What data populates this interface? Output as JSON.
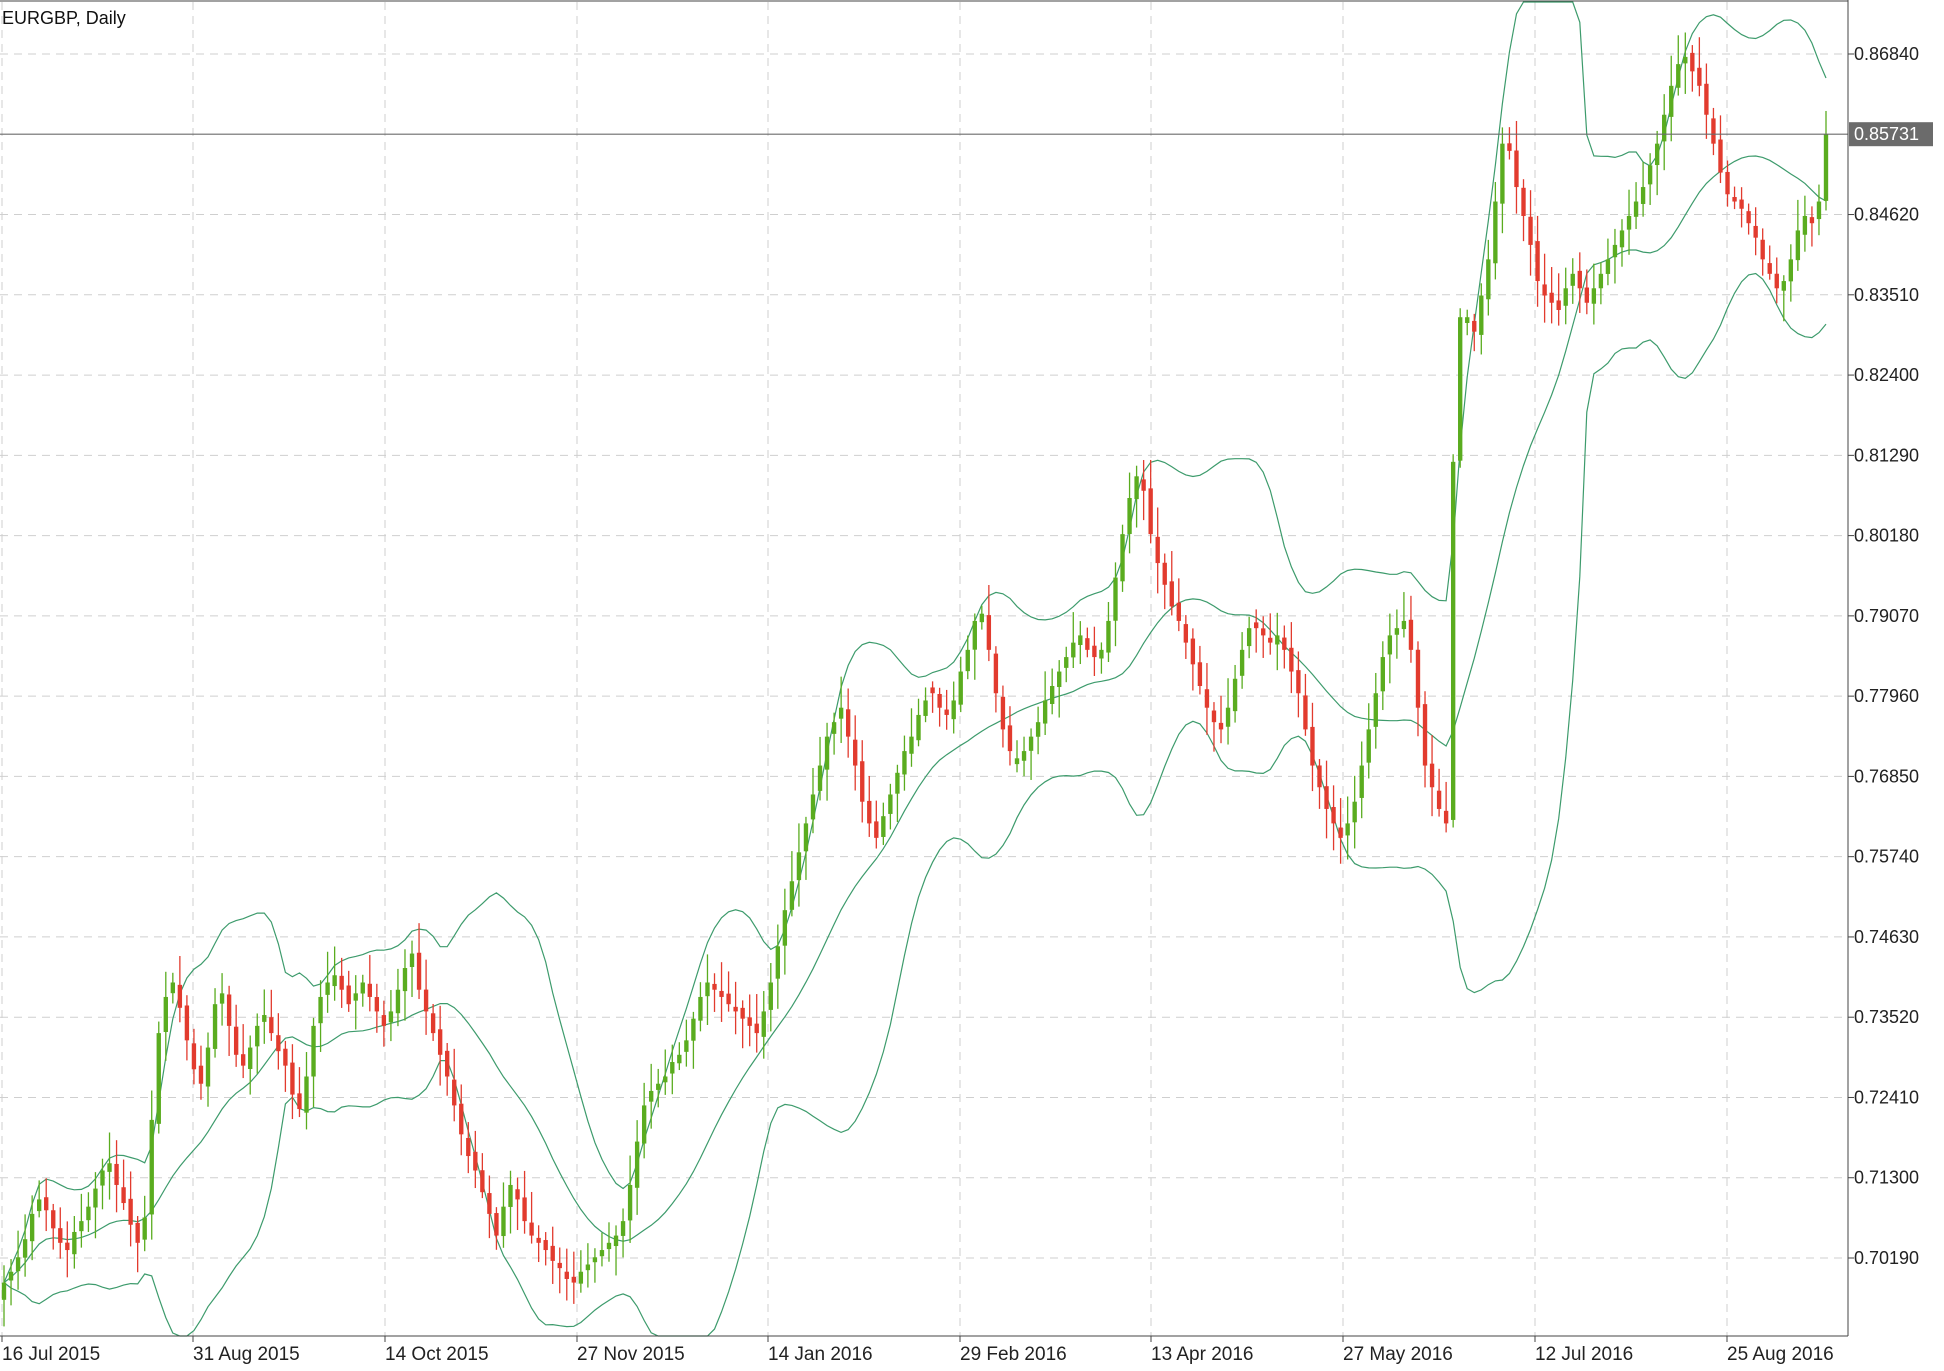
{
  "chart_data": {
    "type": "candlestick",
    "title": "EURGBP, Daily",
    "current_price": 0.85731,
    "current_price_label": "0.85731",
    "y_ticks": [
      0.7019,
      0.713,
      0.7241,
      0.7352,
      0.7463,
      0.7574,
      0.7685,
      0.7796,
      0.7907,
      0.8018,
      0.8129,
      0.824,
      0.8351,
      0.8462,
      0.8684
    ],
    "y_tick_labels": [
      "0.70190",
      "0.71300",
      "0.72410",
      "0.73520",
      "0.74630",
      "0.75740",
      "0.76850",
      "0.77960",
      "0.79070",
      "0.80180",
      "0.81290",
      "0.82400",
      "0.83510",
      "0.84620",
      "0.86840"
    ],
    "ylim": [
      0.6905,
      0.8748
    ],
    "x_tick_labels": [
      "16 Jul 2015",
      "31 Aug 2015",
      "14 Oct 2015",
      "27 Nov 2015",
      "14 Jan 2016",
      "29 Feb 2016",
      "13 Apr 2016",
      "27 May 2016",
      "12 Jul 2016",
      "25 Aug 2016"
    ],
    "grid": true,
    "colors": {
      "bull": "#5aac1f",
      "bear": "#e23b2e",
      "band": "#3d9b6c",
      "grid": "#cfcfcf",
      "price_line": "#6b6b6b",
      "price_label_bg": "#6b6b6b"
    },
    "indicators": [
      "Bollinger Bands (20, 2)"
    ],
    "series_close": [
      0.6985,
      0.7,
      0.702,
      0.7045,
      0.708,
      0.71,
      0.7085,
      0.706,
      0.704,
      0.703,
      0.7055,
      0.707,
      0.709,
      0.7115,
      0.714,
      0.715,
      0.712,
      0.7095,
      0.7065,
      0.704,
      0.7075,
      0.721,
      0.733,
      0.738,
      0.74,
      0.7365,
      0.732,
      0.728,
      0.726,
      0.731,
      0.737,
      0.7385,
      0.734,
      0.73,
      0.7285,
      0.731,
      0.734,
      0.7355,
      0.733,
      0.7305,
      0.7285,
      0.7245,
      0.7225,
      0.727,
      0.734,
      0.738,
      0.74,
      0.741,
      0.739,
      0.737,
      0.7385,
      0.74,
      0.738,
      0.736,
      0.734,
      0.736,
      0.739,
      0.742,
      0.744,
      0.739,
      0.736,
      0.733,
      0.73,
      0.727,
      0.723,
      0.719,
      0.716,
      0.714,
      0.711,
      0.708,
      0.705,
      0.709,
      0.712,
      0.71,
      0.707,
      0.705,
      0.704,
      0.703,
      0.7015,
      0.7005,
      0.699,
      0.6985,
      0.7,
      0.701,
      0.702,
      0.703,
      0.704,
      0.705,
      0.707,
      0.712,
      0.718,
      0.723,
      0.725,
      0.726,
      0.727,
      0.729,
      0.73,
      0.732,
      0.735,
      0.738,
      0.74,
      0.739,
      0.738,
      0.737,
      0.736,
      0.735,
      0.734,
      0.733,
      0.736,
      0.74,
      0.745,
      0.75,
      0.754,
      0.758,
      0.762,
      0.766,
      0.77,
      0.774,
      0.776,
      0.778,
      0.774,
      0.77,
      0.765,
      0.762,
      0.76,
      0.763,
      0.766,
      0.769,
      0.772,
      0.774,
      0.777,
      0.779,
      0.78,
      0.778,
      0.777,
      0.779,
      0.783,
      0.786,
      0.79,
      0.791,
      0.786,
      0.78,
      0.775,
      0.772,
      0.771,
      0.772,
      0.774,
      0.776,
      0.779,
      0.781,
      0.783,
      0.785,
      0.787,
      0.788,
      0.786,
      0.785,
      0.786,
      0.79,
      0.796,
      0.802,
      0.807,
      0.81,
      0.808,
      0.802,
      0.798,
      0.795,
      0.792,
      0.79,
      0.787,
      0.784,
      0.781,
      0.778,
      0.776,
      0.775,
      0.778,
      0.782,
      0.786,
      0.789,
      0.789,
      0.788,
      0.787,
      0.788,
      0.786,
      0.783,
      0.78,
      0.775,
      0.77,
      0.767,
      0.764,
      0.762,
      0.76,
      0.762,
      0.765,
      0.77,
      0.775,
      0.78,
      0.785,
      0.788,
      0.789,
      0.79,
      0.786,
      0.778,
      0.77,
      0.767,
      0.764,
      0.762,
      0.812,
      0.832,
      0.832,
      0.83,
      0.835,
      0.84,
      0.848,
      0.856,
      0.855,
      0.85,
      0.846,
      0.842,
      0.837,
      0.835,
      0.834,
      0.833,
      0.836,
      0.838,
      0.836,
      0.834,
      0.836,
      0.838,
      0.84,
      0.842,
      0.844,
      0.846,
      0.848,
      0.85,
      0.853,
      0.856,
      0.86,
      0.864,
      0.867,
      0.868,
      0.866,
      0.864,
      0.86,
      0.856,
      0.852,
      0.849,
      0.848,
      0.847,
      0.845,
      0.843,
      0.84,
      0.838,
      0.836,
      0.837,
      0.84,
      0.844,
      0.846,
      0.845,
      0.848,
      0.8573
    ]
  }
}
